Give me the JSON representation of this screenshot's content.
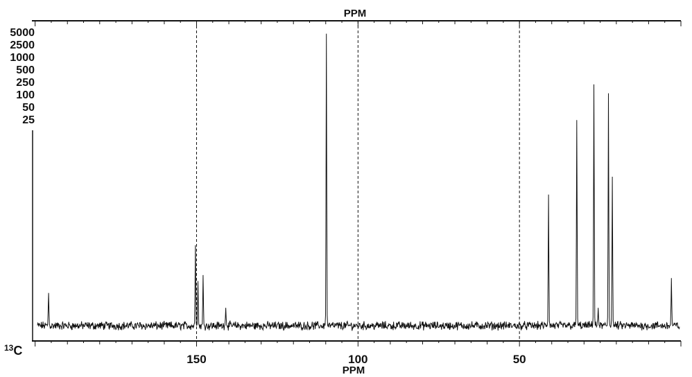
{
  "chart_data": {
    "type": "line",
    "title": "PPM",
    "xlabel": "PPM",
    "ylabel": "",
    "nucleus_label": "13C",
    "x_reversed": true,
    "xlim": [
      201,
      0
    ],
    "x_ticks": [
      150,
      100,
      50
    ],
    "x_tick_labels": [
      "150",
      "100",
      "50"
    ],
    "vertical_scale_labels": [
      "5000",
      "2500",
      "1000",
      "500",
      "250",
      "100",
      "50",
      "25"
    ],
    "dashed_gridlines_x": [
      150,
      100,
      50
    ],
    "baseline": 0.0,
    "peaks": [
      {
        "ppm": 197.5,
        "height": 0.11
      },
      {
        "ppm": 151.5,
        "height": 0.27
      },
      {
        "ppm": 150.8,
        "height": 0.15
      },
      {
        "ppm": 149.2,
        "height": 0.17
      },
      {
        "ppm": 142.0,
        "height": 0.06
      },
      {
        "ppm": 110.5,
        "height": 0.98
      },
      {
        "ppm": 41.0,
        "height": 0.44
      },
      {
        "ppm": 32.2,
        "height": 0.69
      },
      {
        "ppm": 26.8,
        "height": 0.81
      },
      {
        "ppm": 25.5,
        "height": 0.06
      },
      {
        "ppm": 22.3,
        "height": 0.78
      },
      {
        "ppm": 21.0,
        "height": 0.5
      },
      {
        "ppm": 2.5,
        "height": 0.16
      }
    ]
  }
}
